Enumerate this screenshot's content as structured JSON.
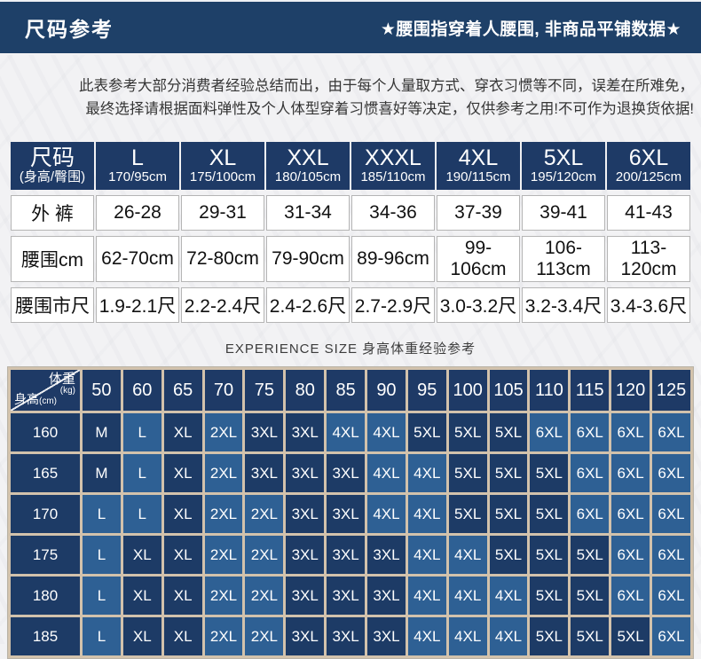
{
  "header": {
    "title": "尺码参考",
    "note": "★腰围指穿着人腰围, 非商品平铺数据★"
  },
  "disclaimer": {
    "line1": "此表参考大部分消费者经验总结而出，由于每个人量取方式、穿衣习惯等不同，误差在所难免，",
    "line2": "最终选择请根据面料弹性及个人体型穿着习惯喜好等决定，仅供参考之用!不可作为退换货依据!"
  },
  "size_table": {
    "corner": {
      "title": "尺码",
      "sub": "(身高/臀围)"
    },
    "columns": [
      {
        "size": "L",
        "spec": "170/95cm"
      },
      {
        "size": "XL",
        "spec": "175/100cm"
      },
      {
        "size": "XXL",
        "spec": "180/105cm"
      },
      {
        "size": "XXXL",
        "spec": "185/110cm"
      },
      {
        "size": "4XL",
        "spec": "190/115cm"
      },
      {
        "size": "5XL",
        "spec": "195/120cm"
      },
      {
        "size": "6XL",
        "spec": "200/125cm"
      }
    ],
    "rows": [
      {
        "label": "外 裤",
        "values": [
          "26-28",
          "29-31",
          "31-34",
          "34-36",
          "37-39",
          "39-41",
          "41-43"
        ]
      },
      {
        "label": "腰围cm",
        "values": [
          "62-70cm",
          "72-80cm",
          "79-90cm",
          "89-96cm",
          "99-106cm",
          "106-113cm",
          "113-120cm"
        ]
      },
      {
        "label": "腰围市尺",
        "values": [
          "1.9-2.1尺",
          "2.2-2.4尺",
          "2.4-2.6尺",
          "2.7-2.9尺",
          "3.0-3.2尺",
          "3.2-3.4尺",
          "3.4-3.6尺"
        ]
      }
    ]
  },
  "experience": {
    "title": "EXPERIENCE SIZE 身高体重经验参考",
    "corner": {
      "top": "体重",
      "top_unit": "(kg)",
      "side": "身高",
      "side_unit": "(cm)"
    },
    "weights": [
      "50",
      "60",
      "65",
      "70",
      "75",
      "80",
      "85",
      "90",
      "95",
      "100",
      "105",
      "110",
      "115",
      "120",
      "125"
    ],
    "rows": [
      {
        "height": "160",
        "sizes": [
          "M",
          "L",
          "XL",
          "2XL",
          "3XL",
          "3XL",
          "4XL",
          "4XL",
          "5XL",
          "5XL",
          "5XL",
          "6XL",
          "6XL",
          "6XL",
          "6XL"
        ]
      },
      {
        "height": "165",
        "sizes": [
          "M",
          "L",
          "XL",
          "2XL",
          "3XL",
          "3XL",
          "3XL",
          "4XL",
          "4XL",
          "5XL",
          "5XL",
          "5XL",
          "6XL",
          "6XL",
          "6XL"
        ]
      },
      {
        "height": "170",
        "sizes": [
          "L",
          "L",
          "XL",
          "2XL",
          "2XL",
          "3XL",
          "3XL",
          "4XL",
          "4XL",
          "5XL",
          "5XL",
          "5XL",
          "6XL",
          "6XL",
          "6XL"
        ]
      },
      {
        "height": "175",
        "sizes": [
          "L",
          "XL",
          "XL",
          "2XL",
          "2XL",
          "3XL",
          "3XL",
          "3XL",
          "4XL",
          "4XL",
          "5XL",
          "5XL",
          "5XL",
          "6XL",
          "6XL"
        ]
      },
      {
        "height": "180",
        "sizes": [
          "L",
          "XL",
          "XL",
          "2XL",
          "2XL",
          "3XL",
          "3XL",
          "3XL",
          "4XL",
          "4XL",
          "4XL",
          "5XL",
          "5XL",
          "6XL",
          "6XL"
        ]
      },
      {
        "height": "185",
        "sizes": [
          "L",
          "XL",
          "XL",
          "2XL",
          "2XL",
          "3XL",
          "3XL",
          "3XL",
          "4XL",
          "4XL",
          "4XL",
          "5XL",
          "5XL",
          "5XL",
          "6XL"
        ]
      }
    ],
    "dark_sizes": [
      "M",
      "XL",
      "3XL",
      "5XL"
    ]
  },
  "colors": {
    "header_bar_navy": "#1e4068",
    "table_header_navy": "#1e3a66",
    "matrix_cell_dark": "#1d3b66",
    "matrix_cell_medium": "#2e6094",
    "matrix_grid_line": "#d2c2ac"
  }
}
